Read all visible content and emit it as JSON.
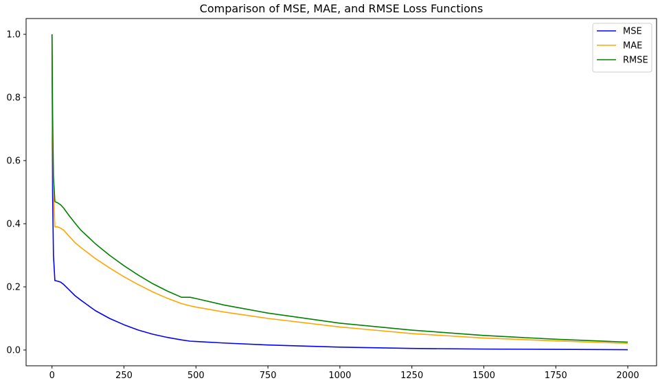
{
  "chart_data": {
    "type": "line",
    "title": "Comparison of MSE, MAE, and RMSE Loss Functions",
    "xlabel": "",
    "ylabel": "",
    "xlim": [
      -90,
      2100
    ],
    "ylim": [
      -0.05,
      1.05
    ],
    "xticks": [
      0,
      250,
      500,
      750,
      1000,
      1250,
      1500,
      1750,
      2000
    ],
    "xtick_labels": [
      "0",
      "250",
      "500",
      "750",
      "1000",
      "1250",
      "1500",
      "1750",
      "2000"
    ],
    "yticks": [
      0.0,
      0.2,
      0.4,
      0.6,
      0.8,
      1.0
    ],
    "ytick_labels": [
      "0.0",
      "0.2",
      "0.4",
      "0.6",
      "0.8",
      "1.0"
    ],
    "grid": false,
    "legend_position": "top-right",
    "series": [
      {
        "name": "MSE",
        "color": "#0000ff",
        "x": [
          0,
          2,
          5,
          10,
          20,
          30,
          40,
          60,
          80,
          100,
          150,
          200,
          250,
          300,
          350,
          400,
          450,
          480,
          500,
          600,
          750,
          1000,
          1250,
          1500,
          1750,
          2000
        ],
        "y": [
          1.0,
          0.5,
          0.3,
          0.22,
          0.218,
          0.215,
          0.208,
          0.19,
          0.172,
          0.158,
          0.125,
          0.1,
          0.08,
          0.063,
          0.05,
          0.04,
          0.032,
          0.028,
          0.027,
          0.022,
          0.016,
          0.009,
          0.005,
          0.003,
          0.002,
          0.001
        ]
      },
      {
        "name": "MAE",
        "color": "#ffa500",
        "x": [
          0,
          2,
          5,
          10,
          20,
          30,
          40,
          60,
          80,
          100,
          150,
          200,
          250,
          300,
          350,
          400,
          450,
          480,
          500,
          600,
          750,
          1000,
          1250,
          1500,
          1750,
          2000
        ],
        "y": [
          1.0,
          0.7,
          0.5,
          0.39,
          0.39,
          0.386,
          0.38,
          0.36,
          0.34,
          0.325,
          0.29,
          0.26,
          0.232,
          0.207,
          0.184,
          0.164,
          0.147,
          0.14,
          0.136,
          0.12,
          0.1,
          0.073,
          0.052,
          0.038,
          0.029,
          0.021
        ]
      },
      {
        "name": "RMSE",
        "color": "#008000",
        "x": [
          0,
          2,
          5,
          10,
          20,
          30,
          40,
          60,
          80,
          100,
          150,
          200,
          250,
          300,
          350,
          400,
          450,
          480,
          500,
          600,
          750,
          1000,
          1250,
          1500,
          1750,
          2000
        ],
        "y": [
          1.0,
          0.75,
          0.55,
          0.47,
          0.466,
          0.46,
          0.45,
          0.425,
          0.402,
          0.38,
          0.337,
          0.3,
          0.267,
          0.237,
          0.21,
          0.187,
          0.167,
          0.167,
          0.163,
          0.142,
          0.117,
          0.085,
          0.063,
          0.046,
          0.034,
          0.025
        ]
      }
    ]
  }
}
